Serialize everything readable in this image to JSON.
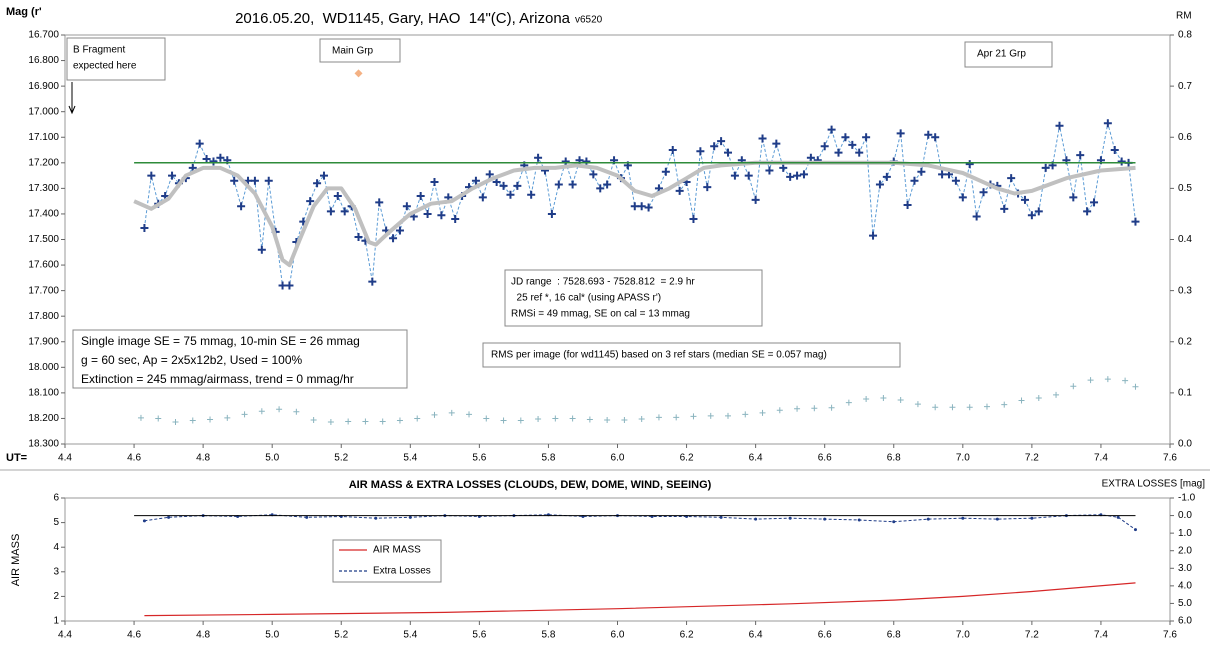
{
  "chart_data": [
    {
      "type": "line",
      "title": "2016.05.20,  WD1145, Gary, HAO  14\"(C), Arizona",
      "subtitle": "v6520",
      "y_label": "Mag (r'",
      "y2_label": "RM",
      "x_label": "UT=",
      "xlim": [
        4.4,
        7.6
      ],
      "xticks": [
        4.4,
        4.6,
        4.8,
        {
          "value": 5.0,
          "label": "5.0"
        },
        5.2,
        5.4,
        5.6,
        5.8,
        {
          "value": 6.0,
          "label": "6.0"
        },
        6.2,
        6.4,
        6.6,
        6.8,
        {
          "value": 7.0,
          "label": "7.0"
        },
        7.2,
        7.4,
        7.6
      ],
      "ylim": [
        16.7,
        18.3
      ],
      "y_inverted": true,
      "yticks": [
        {
          "value": 16.7,
          "label": "16.700"
        },
        {
          "value": 16.8,
          "label": "16.800"
        },
        {
          "value": 16.9,
          "label": "16.900"
        },
        {
          "value": 17.0,
          "label": "17.000"
        },
        {
          "value": 17.1,
          "label": "17.100"
        },
        {
          "value": 17.2,
          "label": "17.200"
        },
        {
          "value": 17.3,
          "label": "17.300"
        },
        {
          "value": 17.4,
          "label": "17.400"
        },
        {
          "value": 17.5,
          "label": "17.500"
        },
        {
          "value": 17.6,
          "label": "17.600"
        },
        {
          "value": 17.7,
          "label": "17.700"
        },
        {
          "value": 17.8,
          "label": "17.800"
        },
        {
          "value": 17.9,
          "label": "17.900"
        },
        {
          "value": 18.0,
          "label": "18.000"
        },
        {
          "value": 18.1,
          "label": "18.100"
        },
        {
          "value": 18.2,
          "label": "18.200"
        },
        {
          "value": 18.3,
          "label": "18.300"
        }
      ],
      "y2lim": [
        0,
        0.8
      ],
      "y2ticks": [
        {
          "value": 0,
          "label": "0.0"
        },
        0.1,
        0.2,
        0.3,
        0.4,
        0.5,
        0.6,
        0.7,
        0.8
      ],
      "series": [
        {
          "color": "#1f3c88",
          "line_color": "#5b9bd5",
          "marker": "plus",
          "line": "dashed",
          "x": [
            4.63,
            4.65,
            4.67,
            4.69,
            4.71,
            4.73,
            4.75,
            4.77,
            4.79,
            4.81,
            4.83,
            4.85,
            4.87,
            4.89,
            4.91,
            4.93,
            4.95,
            4.97,
            4.99,
            5.01,
            5.03,
            5.05,
            5.07,
            5.09,
            5.11,
            5.13,
            5.15,
            5.17,
            5.19,
            5.21,
            5.23,
            5.25,
            5.27,
            5.29,
            5.31,
            5.33,
            5.35,
            5.37,
            5.39,
            5.41,
            5.43,
            5.45,
            5.47,
            5.49,
            5.51,
            5.53,
            5.55,
            5.57,
            5.59,
            5.61,
            5.63,
            5.65,
            5.67,
            5.69,
            5.71,
            5.73,
            5.75,
            5.77,
            5.79,
            5.81,
            5.83,
            5.85,
            5.87,
            5.89,
            5.91,
            5.93,
            5.95,
            5.97,
            5.99,
            6.01,
            6.03,
            6.05,
            6.07,
            6.09,
            6.12,
            6.14,
            6.16,
            6.18,
            6.2,
            6.22,
            6.24,
            6.26,
            6.28,
            6.3,
            6.32,
            6.34,
            6.36,
            6.38,
            6.4,
            6.42,
            6.44,
            6.46,
            6.48,
            6.5,
            6.52,
            6.54,
            6.56,
            6.58,
            6.6,
            6.62,
            6.64,
            6.66,
            6.68,
            6.7,
            6.72,
            6.74,
            6.76,
            6.78,
            6.8,
            6.82,
            6.84,
            6.86,
            6.88,
            6.9,
            6.92,
            6.94,
            6.96,
            6.98,
            7.0,
            7.02,
            7.04,
            7.06,
            7.08,
            7.1,
            7.12,
            7.14,
            7.16,
            7.18,
            7.2,
            7.22,
            7.24,
            7.26,
            7.28,
            7.3,
            7.32,
            7.34,
            7.36,
            7.38,
            7.4,
            7.42,
            7.44,
            7.46,
            7.48,
            7.5
          ],
          "values": [
            17.455,
            17.25,
            17.36,
            17.33,
            17.25,
            17.28,
            17.26,
            17.22,
            17.125,
            17.185,
            17.195,
            17.18,
            17.19,
            17.27,
            17.37,
            17.27,
            17.27,
            17.54,
            17.27,
            17.47,
            17.68,
            17.68,
            17.51,
            17.43,
            17.35,
            17.28,
            17.25,
            17.39,
            17.33,
            17.39,
            17.37,
            17.49,
            17.505,
            17.665,
            17.355,
            17.465,
            17.495,
            17.465,
            17.37,
            17.41,
            17.33,
            17.4,
            17.275,
            17.405,
            17.335,
            17.42,
            17.33,
            17.295,
            17.27,
            17.335,
            17.245,
            17.275,
            17.29,
            17.325,
            17.29,
            17.21,
            17.325,
            17.18,
            17.23,
            17.4,
            17.285,
            17.195,
            17.285,
            17.19,
            17.195,
            17.245,
            17.3,
            17.285,
            17.19,
            17.26,
            17.21,
            17.37,
            17.37,
            17.375,
            17.3,
            17.235,
            17.15,
            17.31,
            17.275,
            17.42,
            17.155,
            17.295,
            17.135,
            17.115,
            17.16,
            17.25,
            17.19,
            17.25,
            17.345,
            17.105,
            17.23,
            17.125,
            17.22,
            17.255,
            17.25,
            17.245,
            17.18,
            17.19,
            17.135,
            17.07,
            17.16,
            17.1,
            17.13,
            17.16,
            17.1,
            17.485,
            17.285,
            17.255,
            17.195,
            17.085,
            17.365,
            17.27,
            17.235,
            17.09,
            17.1,
            17.245,
            17.245,
            17.27,
            17.335,
            17.205,
            17.41,
            17.315,
            17.285,
            17.29,
            17.38,
            17.26,
            17.32,
            17.345,
            17.405,
            17.39,
            17.22,
            17.21,
            17.055,
            17.19,
            17.335,
            17.17,
            17.39,
            17.355,
            17.19,
            17.045,
            17.15,
            17.195,
            17.2,
            17.43
          ]
        },
        {
          "color": "#c0c0c0",
          "marker": "none",
          "line": "solid",
          "line_width": 4,
          "x": [
            4.6,
            4.65,
            4.7,
            4.75,
            4.8,
            4.85,
            4.9,
            4.95,
            5.0,
            5.03,
            5.05,
            5.08,
            5.12,
            5.16,
            5.2,
            5.24,
            5.28,
            5.3,
            5.34,
            5.4,
            5.46,
            5.52,
            5.58,
            5.64,
            5.7,
            5.76,
            5.82,
            5.88,
            5.94,
            6.0,
            6.05,
            6.1,
            6.15,
            6.2,
            6.25,
            6.3,
            6.4,
            6.5,
            6.6,
            6.7,
            6.8,
            6.9,
            7.0,
            7.05,
            7.1,
            7.15,
            7.2,
            7.3,
            7.4,
            7.5
          ],
          "values": [
            17.35,
            17.38,
            17.34,
            17.25,
            17.22,
            17.22,
            17.25,
            17.32,
            17.45,
            17.58,
            17.6,
            17.5,
            17.37,
            17.3,
            17.3,
            17.38,
            17.51,
            17.52,
            17.47,
            17.4,
            17.36,
            17.35,
            17.3,
            17.26,
            17.23,
            17.22,
            17.22,
            17.21,
            17.22,
            17.25,
            17.31,
            17.33,
            17.3,
            17.26,
            17.22,
            17.21,
            17.2,
            17.2,
            17.2,
            17.2,
            17.2,
            17.21,
            17.24,
            17.27,
            17.3,
            17.32,
            17.31,
            17.26,
            17.23,
            17.22
          ]
        },
        {
          "color": "#2e8b3a",
          "marker": "none",
          "line": "solid",
          "line_width": 1.5,
          "x": [
            4.6,
            7.5
          ],
          "values": [
            17.2,
            17.2
          ]
        },
        {
          "color": "#8ab4bf",
          "marker": "plus_small",
          "line": "none",
          "axis": "y2",
          "x": [
            4.62,
            4.67,
            4.72,
            4.77,
            4.82,
            4.87,
            4.92,
            4.97,
            5.02,
            5.07,
            5.12,
            5.17,
            5.22,
            5.27,
            5.32,
            5.37,
            5.42,
            5.47,
            5.52,
            5.57,
            5.62,
            5.67,
            5.72,
            5.77,
            5.82,
            5.87,
            5.92,
            5.97,
            6.02,
            6.07,
            6.12,
            6.17,
            6.22,
            6.27,
            6.32,
            6.37,
            6.42,
            6.47,
            6.52,
            6.57,
            6.62,
            6.67,
            6.72,
            6.77,
            6.82,
            6.87,
            6.92,
            6.97,
            7.02,
            7.07,
            7.12,
            7.17,
            7.22,
            7.27,
            7.32,
            7.37,
            7.42,
            7.47,
            7.5
          ],
          "values": [
            0.051,
            0.05,
            0.043,
            0.046,
            0.048,
            0.051,
            0.058,
            0.064,
            0.068,
            0.063,
            0.047,
            0.043,
            0.044,
            0.044,
            0.044,
            0.046,
            0.05,
            0.057,
            0.061,
            0.058,
            0.05,
            0.046,
            0.046,
            0.049,
            0.05,
            0.05,
            0.048,
            0.047,
            0.047,
            0.049,
            0.052,
            0.052,
            0.054,
            0.055,
            0.055,
            0.058,
            0.061,
            0.066,
            0.069,
            0.07,
            0.071,
            0.081,
            0.088,
            0.09,
            0.086,
            0.078,
            0.072,
            0.072,
            0.072,
            0.073,
            0.077,
            0.085,
            0.09,
            0.096,
            0.113,
            0.125,
            0.127,
            0.124,
            0.112
          ]
        }
      ],
      "markers": [
        {
          "x": 5.25,
          "y": 16.85,
          "color": "#f4b183"
        }
      ],
      "annotations": [
        {
          "lines": [
            "B Fragment",
            "expected here"
          ]
        },
        {
          "lines": [
            "Main Grp"
          ]
        },
        {
          "lines": [
            "Apr 21 Grp"
          ]
        },
        {
          "lines": [
            "JD range  : 7528.693 - 7528.812  = 2.9 hr",
            "  25 ref *, 16 cal* (using APASS r')",
            "RMSi = 49 mmag, SE on cal = 13 mmag"
          ]
        },
        {
          "lines": [
            "Single image SE = 75 mmag, 10-min SE = 26 mmag",
            "g = 60 sec, Ap = 2x5x12b2, Used = 100%",
            "Extinction = 245 mmag/airmass, trend = 0 mmag/hr"
          ]
        },
        {
          "lines": [
            "RMS per image (for wd1145) based on 3 ref stars (median SE = 0.057 mag)"
          ]
        }
      ]
    },
    {
      "type": "line",
      "title": "AIR MASS & EXTRA LOSSES (CLOUDS, DEW, DOME, WIND, SEEING)",
      "y_label": "AIR MASS",
      "y2_label": "EXTRA LOSSES [mag]",
      "xlim": [
        4.4,
        7.6
      ],
      "xticks": [
        4.4,
        4.6,
        4.8,
        {
          "value": 5.0,
          "label": "5.0"
        },
        5.2,
        5.4,
        5.6,
        5.8,
        {
          "value": 6.0,
          "label": "6.0"
        },
        6.2,
        6.4,
        6.6,
        6.8,
        {
          "value": 7.0,
          "label": "7.0"
        },
        7.2,
        7.4,
        7.6
      ],
      "ylim": [
        1,
        6
      ],
      "yticks": [
        1,
        2,
        3,
        4,
        5,
        6
      ],
      "y2lim": [
        -1,
        6
      ],
      "y2_inverted": true,
      "y2ticks": [
        {
          "value": -1,
          "label": "-1.0"
        },
        {
          "value": 0,
          "label": "0.0"
        },
        {
          "value": 1,
          "label": "1.0"
        },
        {
          "value": 2,
          "label": "2.0"
        },
        {
          "value": 3,
          "label": "3.0"
        },
        {
          "value": 4,
          "label": "4.0"
        },
        {
          "value": 5,
          "label": "5.0"
        },
        {
          "value": 6,
          "label": "6.0"
        }
      ],
      "legend": "center-left",
      "series": [
        {
          "name": "AIR MASS",
          "color": "#d62728",
          "marker": "none",
          "line": "solid",
          "line_width": 1.2,
          "x": [
            4.63,
            5.0,
            5.5,
            6.0,
            6.5,
            6.8,
            7.0,
            7.2,
            7.5
          ],
          "values": [
            1.22,
            1.27,
            1.35,
            1.5,
            1.7,
            1.85,
            2.0,
            2.2,
            2.55
          ]
        },
        {
          "name": "Extra Losses",
          "color": "#1f3c88",
          "marker": "dot",
          "line": "dashed",
          "axis": "y2",
          "x": [
            4.63,
            4.7,
            4.8,
            4.9,
            5.0,
            5.1,
            5.2,
            5.3,
            5.4,
            5.5,
            5.6,
            5.7,
            5.8,
            5.9,
            6.0,
            6.1,
            6.2,
            6.3,
            6.4,
            6.5,
            6.6,
            6.7,
            6.8,
            6.9,
            7.0,
            7.1,
            7.2,
            7.3,
            7.4,
            7.45,
            7.5
          ],
          "values": [
            0.3,
            0.1,
            0.0,
            0.05,
            -0.05,
            0.1,
            0.05,
            0.15,
            0.1,
            0.0,
            0.05,
            0.0,
            -0.05,
            0.05,
            0.0,
            0.05,
            0.05,
            0.1,
            0.2,
            0.15,
            0.2,
            0.25,
            0.35,
            0.2,
            0.15,
            0.2,
            0.15,
            0.0,
            -0.05,
            0.1,
            0.8
          ]
        },
        {
          "color": "#000000",
          "marker": "none",
          "line": "solid",
          "line_width": 1,
          "axis": "y2",
          "x": [
            4.6,
            7.5
          ],
          "values": [
            0,
            0
          ]
        }
      ]
    }
  ]
}
